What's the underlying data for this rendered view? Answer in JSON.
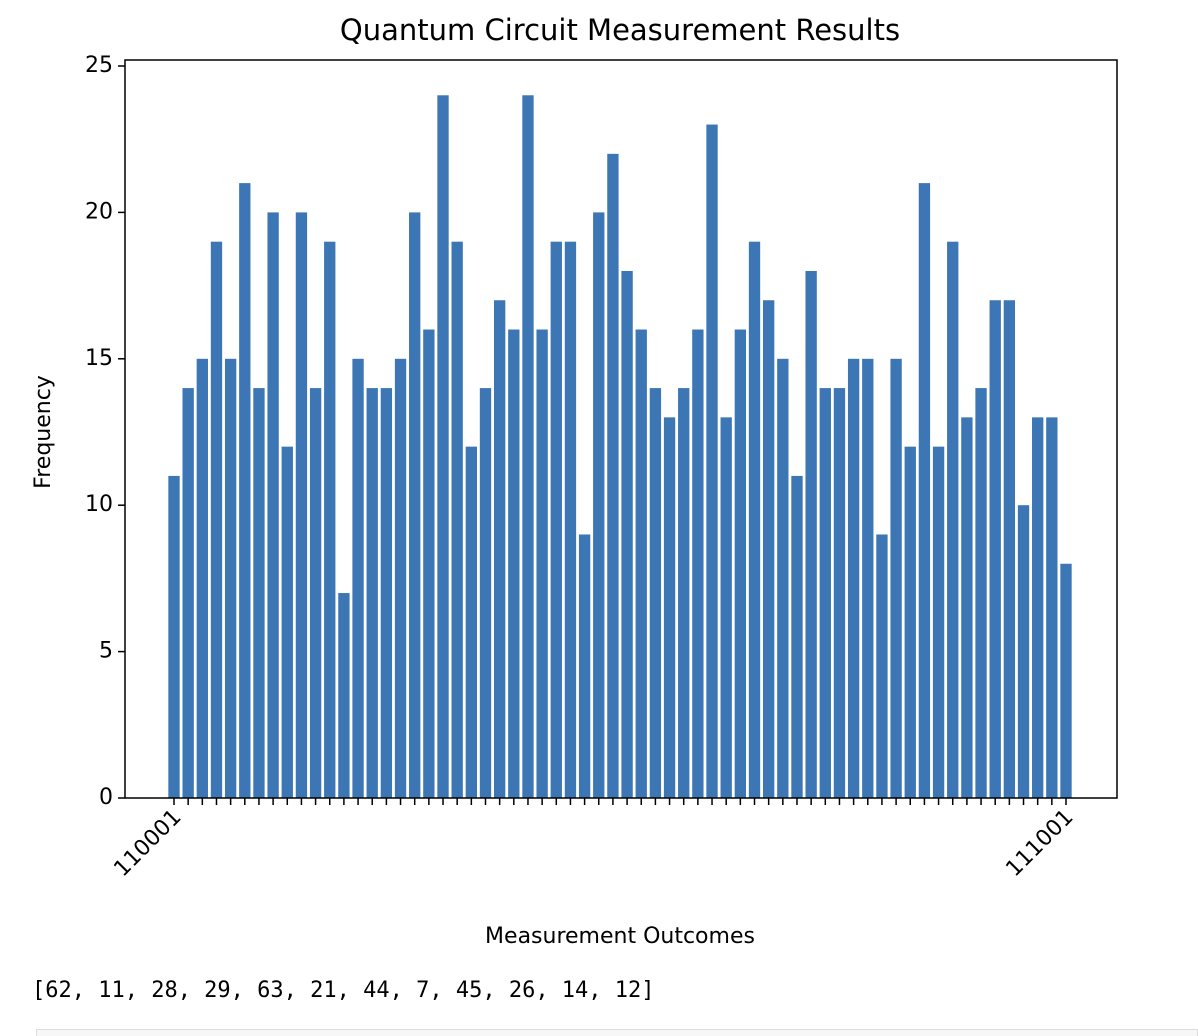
{
  "chart_data": {
    "type": "bar",
    "title": "Quantum Circuit Measurement Results",
    "xlabel": "Measurement Outcomes",
    "ylabel": "Frequency",
    "categories": [
      "110001",
      null,
      null,
      null,
      null,
      null,
      null,
      null,
      null,
      null,
      null,
      null,
      null,
      null,
      null,
      null,
      null,
      null,
      null,
      null,
      null,
      null,
      null,
      null,
      null,
      null,
      null,
      null,
      null,
      null,
      null,
      null,
      null,
      null,
      null,
      null,
      null,
      null,
      null,
      null,
      null,
      null,
      null,
      null,
      null,
      null,
      null,
      null,
      null,
      null,
      null,
      null,
      null,
      null,
      null,
      null,
      null,
      null,
      null,
      null,
      null,
      null,
      null,
      "111001"
    ],
    "values": [
      11,
      14,
      15,
      19,
      15,
      21,
      14,
      20,
      12,
      20,
      14,
      19,
      7,
      15,
      14,
      14,
      15,
      20,
      16,
      24,
      19,
      12,
      14,
      17,
      16,
      24,
      16,
      19,
      19,
      9,
      20,
      22,
      18,
      16,
      14,
      13,
      14,
      16,
      23,
      13,
      16,
      19,
      17,
      15,
      11,
      18,
      14,
      14,
      15,
      15,
      9,
      15,
      12,
      21,
      12,
      19,
      13,
      14,
      17,
      17,
      10,
      13,
      13,
      8
    ],
    "color": "#3d76b4",
    "ylim": [
      0,
      25
    ],
    "yticks": [
      0,
      5,
      10,
      15,
      20,
      25
    ],
    "grid": false
  },
  "output": "[62, 11, 28, 29, 63, 21, 44, 7, 45, 26, 14, 12]"
}
